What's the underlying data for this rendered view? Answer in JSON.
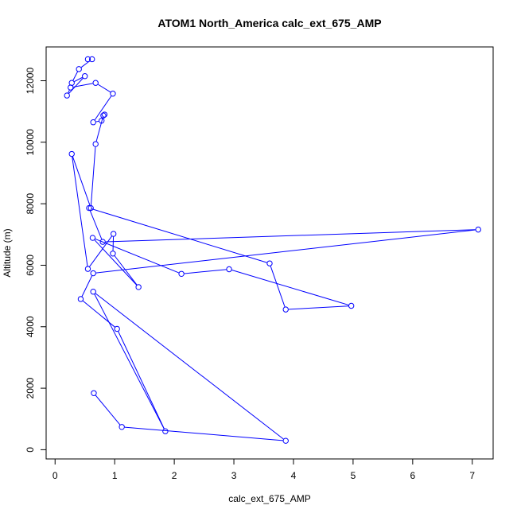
{
  "chart_data": {
    "type": "line",
    "title": "ATOM1 North_America calc_ext_675_AMP",
    "xlabel": "calc_ext_675_AMP",
    "ylabel": "Altitude (m)",
    "xlim": [
      -0.15,
      7.35
    ],
    "ylim": [
      -300,
      13100
    ],
    "x_ticks": [
      "0",
      "1",
      "2",
      "3",
      "4",
      "5",
      "6",
      "7"
    ],
    "y_ticks": [
      "0",
      "2000",
      "4000",
      "6000",
      "8000",
      "10000",
      "12000"
    ],
    "series": [
      {
        "color": "#0000ff",
        "marker": "open-circle",
        "x": [
          0.55,
          0.62,
          0.4,
          0.28,
          0.5,
          0.2,
          0.26,
          0.68,
          0.97,
          0.64,
          0.78,
          0.83,
          0.81,
          0.68,
          0.6,
          0.28,
          0.55,
          0.98,
          0.97,
          1.4,
          0.63,
          2.12,
          2.92,
          4.97,
          3.87,
          3.6,
          0.57,
          0.8,
          7.1,
          0.64,
          0.43,
          1.04,
          1.85,
          0.64,
          3.87,
          1.12,
          0.65
        ],
        "y": [
          12700,
          12700,
          12380,
          11930,
          12150,
          11520,
          11780,
          11930,
          11580,
          10650,
          10700,
          10900,
          10870,
          9940,
          7860,
          9620,
          5880,
          7020,
          6380,
          5290,
          6890,
          5720,
          5870,
          4680,
          4560,
          6060,
          7860,
          6760,
          7160,
          5740,
          4900,
          3930,
          600,
          5140,
          290,
          740,
          1840
        ]
      }
    ]
  }
}
